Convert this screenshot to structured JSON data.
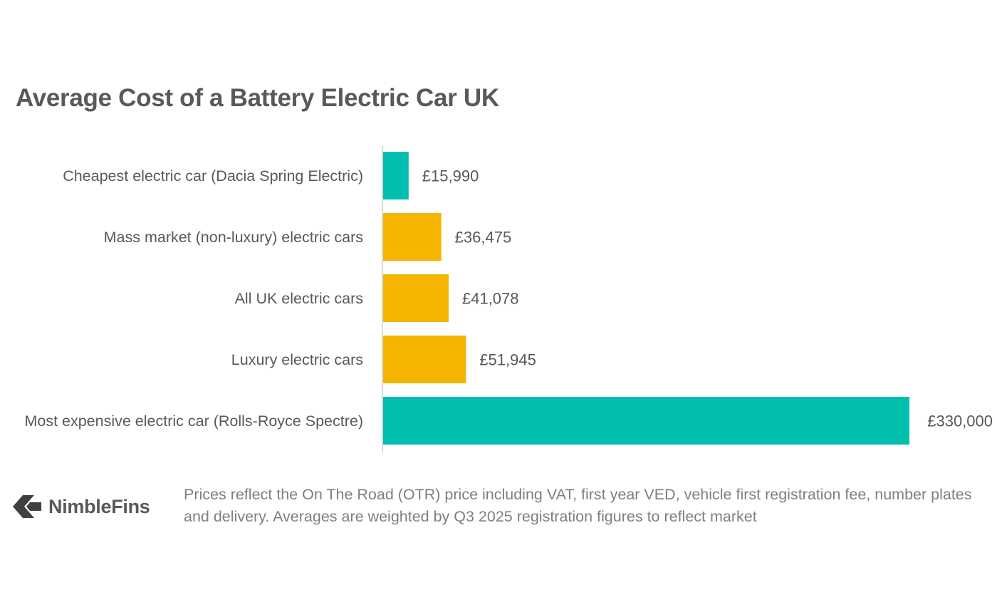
{
  "chart_data": {
    "type": "bar",
    "orientation": "horizontal",
    "title": "Average Cost of a Battery Electric Car UK",
    "categories": [
      "Cheapest electric car (Dacia Spring Electric)",
      "Mass market (non-luxury) electric cars",
      "All UK electric cars",
      "Luxury electric cars",
      "Most expensive electric car (Rolls-Royce Spectre)"
    ],
    "values": [
      15990,
      36475,
      41078,
      51945,
      330000
    ],
    "data_labels": [
      "£15,990",
      "£36,475",
      "£41,078",
      "£51,945",
      "£330,000"
    ],
    "colors": [
      "#00bfae",
      "#f5b400",
      "#f5b400",
      "#f5b400",
      "#00bfae"
    ],
    "xlim": [
      0,
      330000
    ],
    "grid": false,
    "legend": "none"
  },
  "footer": {
    "logo_text": "NimbleFins",
    "logo_icon": "chevron-left-icon",
    "note": "Prices reflect the On The Road (OTR) price including VAT, first year VED, vehicle first registration fee, number plates and delivery. Averages are weighted by Q3 2025 registration figures to reflect market"
  },
  "colors": {
    "text": "#595959",
    "axis": "#d9d9d9",
    "note": "#7f7f7f"
  }
}
